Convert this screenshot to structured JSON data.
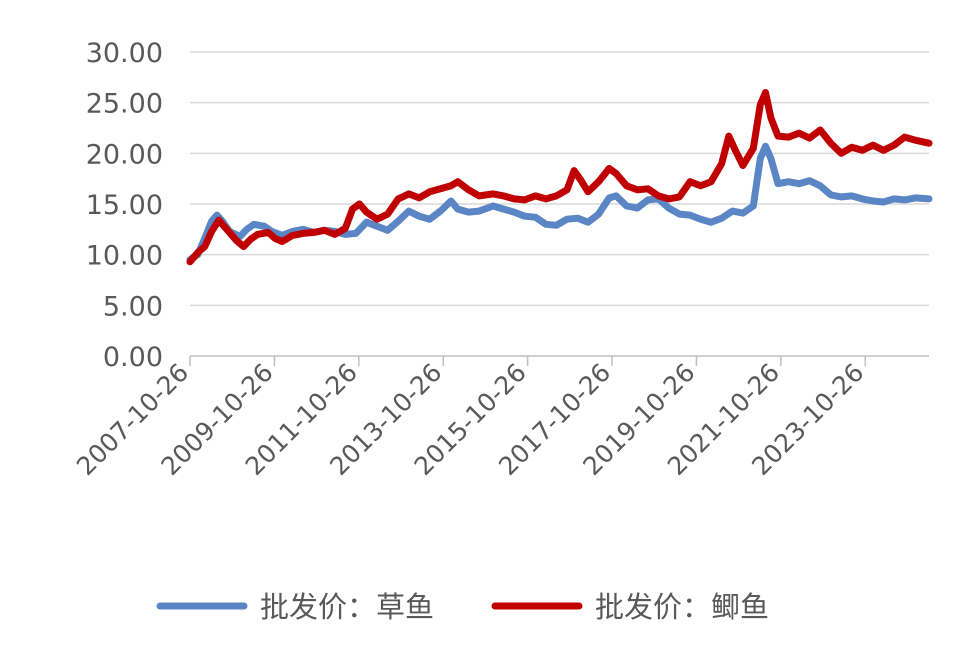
{
  "chart_data": {
    "type": "line",
    "title": "",
    "xlabel": "",
    "ylabel": "",
    "ylim": [
      0,
      30
    ],
    "yticks": [
      "0.00",
      "5.00",
      "10.00",
      "15.00",
      "20.00",
      "25.00",
      "30.00"
    ],
    "xticks": [
      "2007-10-26",
      "2009-10-26",
      "2011-10-26",
      "2013-10-26",
      "2015-10-26",
      "2017-10-26",
      "2019-10-26",
      "2021-10-26",
      "2023-10-26"
    ],
    "x_range": [
      "2007-10-26",
      "2025-04-30"
    ],
    "grid": "horizontal",
    "legend_position": "bottom",
    "series": [
      {
        "name": "批发价：草鱼",
        "color": "#5B86C5",
        "points": [
          [
            "2007-10-26",
            9.5
          ],
          [
            "2008-01-01",
            10.0
          ],
          [
            "2008-03-01",
            11.6
          ],
          [
            "2008-05-01",
            13.3
          ],
          [
            "2008-06-15",
            13.9
          ],
          [
            "2008-08-01",
            13.3
          ],
          [
            "2008-10-01",
            12.3
          ],
          [
            "2009-01-01",
            11.8
          ],
          [
            "2009-03-01",
            12.5
          ],
          [
            "2009-05-01",
            13.0
          ],
          [
            "2009-08-01",
            12.8
          ],
          [
            "2009-10-01",
            12.3
          ],
          [
            "2010-01-01",
            11.9
          ],
          [
            "2010-04-01",
            12.3
          ],
          [
            "2010-07-01",
            12.5
          ],
          [
            "2010-10-01",
            12.2
          ],
          [
            "2011-01-01",
            12.4
          ],
          [
            "2011-04-01",
            12.3
          ],
          [
            "2011-07-01",
            12.0
          ],
          [
            "2011-10-01",
            12.1
          ],
          [
            "2012-01-01",
            13.2
          ],
          [
            "2012-04-01",
            12.8
          ],
          [
            "2012-07-01",
            12.4
          ],
          [
            "2012-10-01",
            13.3
          ],
          [
            "2013-01-01",
            14.3
          ],
          [
            "2013-04-01",
            13.8
          ],
          [
            "2013-07-01",
            13.5
          ],
          [
            "2013-10-01",
            14.3
          ],
          [
            "2014-01-01",
            15.3
          ],
          [
            "2014-03-01",
            14.5
          ],
          [
            "2014-06-01",
            14.2
          ],
          [
            "2014-09-01",
            14.3
          ],
          [
            "2015-01-01",
            14.8
          ],
          [
            "2015-04-01",
            14.5
          ],
          [
            "2015-07-01",
            14.2
          ],
          [
            "2015-10-01",
            13.8
          ],
          [
            "2016-01-01",
            13.7
          ],
          [
            "2016-04-01",
            13.0
          ],
          [
            "2016-07-01",
            12.9
          ],
          [
            "2016-10-01",
            13.5
          ],
          [
            "2017-01-01",
            13.6
          ],
          [
            "2017-04-01",
            13.2
          ],
          [
            "2017-07-01",
            14.0
          ],
          [
            "2017-10-01",
            15.6
          ],
          [
            "2017-12-01",
            15.8
          ],
          [
            "2018-03-01",
            14.8
          ],
          [
            "2018-06-01",
            14.6
          ],
          [
            "2018-09-01",
            15.4
          ],
          [
            "2018-12-01",
            15.5
          ],
          [
            "2019-03-01",
            14.6
          ],
          [
            "2019-06-01",
            14.0
          ],
          [
            "2019-09-01",
            13.9
          ],
          [
            "2019-12-01",
            13.5
          ],
          [
            "2020-03-01",
            13.2
          ],
          [
            "2020-06-01",
            13.6
          ],
          [
            "2020-09-01",
            14.3
          ],
          [
            "2020-12-01",
            14.1
          ],
          [
            "2021-03-01",
            14.8
          ],
          [
            "2021-05-01",
            19.5
          ],
          [
            "2021-06-15",
            20.7
          ],
          [
            "2021-08-01",
            19.5
          ],
          [
            "2021-10-01",
            17.0
          ],
          [
            "2022-01-01",
            17.2
          ],
          [
            "2022-04-01",
            17.0
          ],
          [
            "2022-07-01",
            17.3
          ],
          [
            "2022-10-01",
            16.8
          ],
          [
            "2023-01-01",
            15.9
          ],
          [
            "2023-04-01",
            15.7
          ],
          [
            "2023-07-01",
            15.8
          ],
          [
            "2023-10-01",
            15.5
          ],
          [
            "2024-01-01",
            15.3
          ],
          [
            "2024-04-01",
            15.2
          ],
          [
            "2024-07-01",
            15.5
          ],
          [
            "2024-10-01",
            15.4
          ],
          [
            "2025-01-01",
            15.6
          ],
          [
            "2025-04-30",
            15.5
          ]
        ]
      },
      {
        "name": "批发价：鲫鱼",
        "color": "#C00000",
        "points": [
          [
            "2007-10-26",
            9.3
          ],
          [
            "2008-01-01",
            10.2
          ],
          [
            "2008-03-01",
            10.8
          ],
          [
            "2008-05-01",
            12.3
          ],
          [
            "2008-07-01",
            13.4
          ],
          [
            "2008-09-01",
            12.6
          ],
          [
            "2008-12-01",
            11.4
          ],
          [
            "2009-02-01",
            10.8
          ],
          [
            "2009-04-01",
            11.5
          ],
          [
            "2009-06-01",
            12.0
          ],
          [
            "2009-09-01",
            12.2
          ],
          [
            "2009-11-01",
            11.6
          ],
          [
            "2010-01-01",
            11.3
          ],
          [
            "2010-04-01",
            11.9
          ],
          [
            "2010-07-01",
            12.1
          ],
          [
            "2010-10-01",
            12.2
          ],
          [
            "2011-01-01",
            12.4
          ],
          [
            "2011-04-01",
            12.0
          ],
          [
            "2011-07-01",
            12.6
          ],
          [
            "2011-09-01",
            14.5
          ],
          [
            "2011-11-01",
            15.0
          ],
          [
            "2012-01-01",
            14.2
          ],
          [
            "2012-04-01",
            13.5
          ],
          [
            "2012-07-01",
            14.0
          ],
          [
            "2012-10-01",
            15.5
          ],
          [
            "2013-01-01",
            16.0
          ],
          [
            "2013-04-01",
            15.6
          ],
          [
            "2013-07-01",
            16.2
          ],
          [
            "2013-10-01",
            16.5
          ],
          [
            "2014-01-01",
            16.8
          ],
          [
            "2014-03-01",
            17.2
          ],
          [
            "2014-06-01",
            16.4
          ],
          [
            "2014-09-01",
            15.8
          ],
          [
            "2015-01-01",
            16.0
          ],
          [
            "2015-04-01",
            15.8
          ],
          [
            "2015-07-01",
            15.5
          ],
          [
            "2015-10-01",
            15.4
          ],
          [
            "2016-01-01",
            15.8
          ],
          [
            "2016-04-01",
            15.5
          ],
          [
            "2016-07-01",
            15.8
          ],
          [
            "2016-10-01",
            16.4
          ],
          [
            "2016-12-01",
            18.3
          ],
          [
            "2017-02-01",
            17.3
          ],
          [
            "2017-04-01",
            16.2
          ],
          [
            "2017-07-01",
            17.2
          ],
          [
            "2017-10-01",
            18.5
          ],
          [
            "2017-12-01",
            18.0
          ],
          [
            "2018-03-01",
            16.8
          ],
          [
            "2018-06-01",
            16.4
          ],
          [
            "2018-09-01",
            16.5
          ],
          [
            "2018-12-01",
            15.8
          ],
          [
            "2019-03-01",
            15.5
          ],
          [
            "2019-06-01",
            15.7
          ],
          [
            "2019-09-01",
            17.2
          ],
          [
            "2019-12-01",
            16.8
          ],
          [
            "2020-03-01",
            17.2
          ],
          [
            "2020-06-01",
            19.0
          ],
          [
            "2020-08-01",
            21.7
          ],
          [
            "2020-10-01",
            20.2
          ],
          [
            "2020-12-01",
            18.8
          ],
          [
            "2021-03-01",
            20.5
          ],
          [
            "2021-05-01",
            24.8
          ],
          [
            "2021-06-15",
            26.0
          ],
          [
            "2021-08-01",
            23.5
          ],
          [
            "2021-10-01",
            21.7
          ],
          [
            "2022-01-01",
            21.6
          ],
          [
            "2022-04-01",
            22.0
          ],
          [
            "2022-07-01",
            21.5
          ],
          [
            "2022-10-01",
            22.3
          ],
          [
            "2023-01-01",
            21.0
          ],
          [
            "2023-04-01",
            20.0
          ],
          [
            "2023-07-01",
            20.6
          ],
          [
            "2023-10-01",
            20.3
          ],
          [
            "2024-01-01",
            20.8
          ],
          [
            "2024-04-01",
            20.3
          ],
          [
            "2024-07-01",
            20.8
          ],
          [
            "2024-10-01",
            21.6
          ],
          [
            "2025-01-01",
            21.3
          ],
          [
            "2025-04-30",
            21.0
          ]
        ]
      }
    ]
  }
}
